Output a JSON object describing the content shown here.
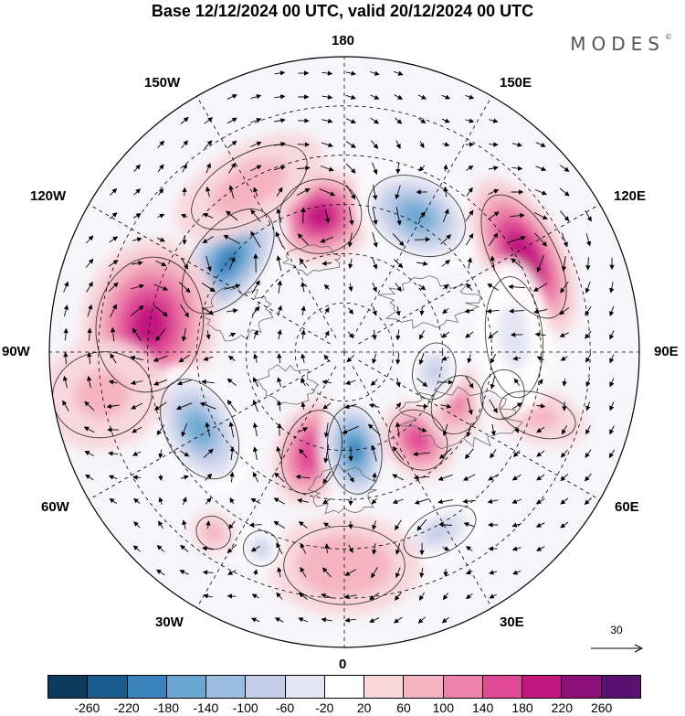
{
  "title": "Base 12/12/2024 00 UTC, valid 20/12/2024 00 UTC",
  "brand": "MODES",
  "brand_mark": "©",
  "longitude_labels": {
    "top": "180",
    "bottom": "0",
    "left": "90W",
    "right": "90E",
    "upper_left_1": "150W",
    "upper_left_2": "120W",
    "upper_right_1": "150E",
    "upper_right_2": "120E",
    "lower_left_1": "60W",
    "lower_left_2": "30W",
    "lower_right_1": "60E",
    "lower_right_2": "30E"
  },
  "reference_vector": {
    "value": "30"
  },
  "colorbar": {
    "colors": [
      "#0d3b5e",
      "#1a5c8e",
      "#3a82bd",
      "#6aa6d2",
      "#9bbde0",
      "#c4cde8",
      "#e4e4f2",
      "#ffffff",
      "#f8d6dc",
      "#f4b3c2",
      "#ec82aa",
      "#e04a97",
      "#c2187e",
      "#8e0f78",
      "#5a106e"
    ],
    "ticks": [
      "-260",
      "-220",
      "-180",
      "-140",
      "-100",
      "-60",
      "-20",
      "20",
      "60",
      "100",
      "140",
      "180",
      "220",
      "260"
    ]
  },
  "anomaly_centers": [
    {
      "lon": 190,
      "lat": 48,
      "value": 190,
      "rx": 58,
      "ry": 52
    },
    {
      "lon": 152,
      "lat": 43,
      "value": -175,
      "rx": 72,
      "ry": 52
    },
    {
      "lon": 118,
      "lat": 28,
      "value": 210,
      "rx": 95,
      "ry": 45
    },
    {
      "lon": 232,
      "lat": 45,
      "value": -220,
      "rx": 85,
      "ry": 48
    },
    {
      "lon": 262,
      "lat": 30,
      "value": 185,
      "rx": 95,
      "ry": 75
    },
    {
      "lon": 298,
      "lat": 40,
      "value": -170,
      "rx": 75,
      "ry": 48
    },
    {
      "lon": 342,
      "lat": 58,
      "value": 175,
      "rx": 40,
      "ry": 60
    },
    {
      "lon": 6,
      "lat": 60,
      "value": -215,
      "rx": 38,
      "ry": 62
    },
    {
      "lon": 40,
      "lat": 55,
      "value": 150,
      "rx": 38,
      "ry": 45
    },
    {
      "lon": 65,
      "lat": 52,
      "value": 100,
      "rx": 42,
      "ry": 35
    },
    {
      "lon": 78,
      "lat": 62,
      "value": -100,
      "rx": 40,
      "ry": 30
    },
    {
      "lon": 75,
      "lat": 40,
      "value": -120,
      "rx": 35,
      "ry": 30
    },
    {
      "lon": 72,
      "lat": 28,
      "value": 60,
      "rx": 30,
      "ry": 55
    },
    {
      "lon": 95,
      "lat": 38,
      "value": -60,
      "rx": 85,
      "ry": 40
    },
    {
      "lon": 28,
      "lat": 28,
      "value": -100,
      "rx": 55,
      "ry": 30
    },
    {
      "lon": 0,
      "lat": 25,
      "value": 90,
      "rx": 85,
      "ry": 55
    },
    {
      "lon": 337,
      "lat": 25,
      "value": -90,
      "rx": 25,
      "ry": 25
    },
    {
      "lon": 324,
      "lat": 22,
      "value": 70,
      "rx": 25,
      "ry": 22
    },
    {
      "lon": 210,
      "lat": 32,
      "value": 70,
      "rx": 90,
      "ry": 45
    },
    {
      "lon": 280,
      "lat": 15,
      "value": 60,
      "rx": 60,
      "ry": 70
    }
  ]
}
